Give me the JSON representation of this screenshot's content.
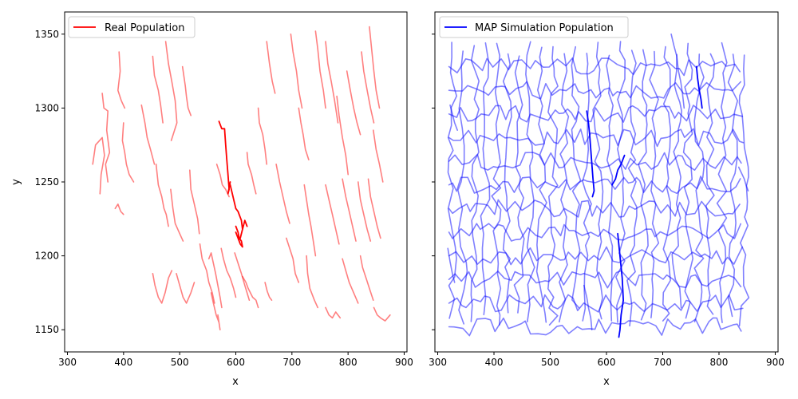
{
  "chart_data": [
    {
      "type": "line",
      "xlabel": "x",
      "ylabel": "y",
      "xlim": [
        295,
        905
      ],
      "ylim": [
        1135,
        1365
      ],
      "x_ticks": [
        300,
        400,
        500,
        600,
        700,
        800,
        900
      ],
      "y_ticks": [
        1150,
        1200,
        1250,
        1300,
        1350
      ],
      "legend": {
        "placement": "top-left",
        "label": "Real Population",
        "color": "#ff0000"
      },
      "series_color": "#ff0000",
      "series_opacity": 0.5,
      "highlight_opacity": 1.0,
      "series": [
        {
          "x": [
            362,
            365,
            372,
            370,
            375,
            368,
            372
          ],
          "y": [
            1310,
            1300,
            1298,
            1285,
            1270,
            1262,
            1250
          ]
        },
        {
          "x": [
            392,
            394,
            390,
            396,
            402
          ],
          "y": [
            1338,
            1325,
            1312,
            1305,
            1300
          ]
        },
        {
          "x": [
            345,
            350,
            362,
            366,
            360,
            358
          ],
          "y": [
            1262,
            1275,
            1280,
            1268,
            1255,
            1242
          ]
        },
        {
          "x": [
            400,
            398,
            402,
            405,
            410,
            418
          ],
          "y": [
            1290,
            1278,
            1270,
            1262,
            1255,
            1250
          ]
        },
        {
          "x": [
            385,
            390,
            395,
            400
          ],
          "y": [
            1232,
            1235,
            1230,
            1228
          ]
        },
        {
          "x": [
            432,
            438,
            442,
            448,
            455
          ],
          "y": [
            1302,
            1290,
            1280,
            1272,
            1262
          ]
        },
        {
          "x": [
            452,
            455,
            462,
            466,
            470
          ],
          "y": [
            1335,
            1322,
            1312,
            1302,
            1290
          ]
        },
        {
          "x": [
            475,
            480,
            486,
            492,
            495,
            485
          ],
          "y": [
            1345,
            1330,
            1318,
            1305,
            1290,
            1278
          ]
        },
        {
          "x": [
            505,
            510,
            512,
            515,
            520
          ],
          "y": [
            1328,
            1315,
            1308,
            1300,
            1295
          ]
        },
        {
          "x": [
            458,
            462,
            468,
            472,
            476,
            480
          ],
          "y": [
            1262,
            1248,
            1240,
            1232,
            1228,
            1220
          ]
        },
        {
          "x": [
            484,
            488,
            492,
            500,
            506
          ],
          "y": [
            1245,
            1232,
            1222,
            1215,
            1210
          ]
        },
        {
          "x": [
            518,
            520,
            526,
            532,
            535
          ],
          "y": [
            1258,
            1245,
            1235,
            1225,
            1215
          ]
        },
        {
          "x": [
            452,
            456,
            462,
            468,
            474,
            480,
            486
          ],
          "y": [
            1188,
            1180,
            1172,
            1168,
            1175,
            1185,
            1190
          ]
        },
        {
          "x": [
            494,
            500,
            506,
            512,
            520,
            526
          ],
          "y": [
            1188,
            1180,
            1172,
            1168,
            1175,
            1182
          ]
        },
        {
          "x": [
            536,
            540,
            548,
            552,
            558,
            562
          ],
          "y": [
            1208,
            1198,
            1190,
            1182,
            1175,
            1168
          ]
        },
        {
          "x": [
            552,
            556,
            560,
            564,
            568,
            572,
            575
          ],
          "y": [
            1198,
            1202,
            1195,
            1188,
            1180,
            1172,
            1165
          ]
        },
        {
          "x": [
            556,
            560,
            565,
            570,
            572,
            568
          ],
          "y": [
            1175,
            1168,
            1160,
            1155,
            1150,
            1160
          ]
        },
        {
          "x": [
            574,
            578,
            584,
            590,
            596,
            600
          ],
          "y": [
            1205,
            1198,
            1190,
            1185,
            1178,
            1172
          ]
        },
        {
          "x": [
            598,
            604,
            610,
            616,
            620,
            624
          ],
          "y": [
            1202,
            1195,
            1188,
            1180,
            1175,
            1170
          ]
        },
        {
          "x": [
            612,
            618,
            622,
            630,
            636,
            640
          ],
          "y": [
            1186,
            1182,
            1178,
            1172,
            1170,
            1165
          ]
        },
        {
          "x": [
            566,
            572,
            576,
            582,
            588
          ],
          "y": [
            1262,
            1255,
            1248,
            1245,
            1240
          ]
        },
        {
          "x": [
            620,
            622,
            628,
            632,
            636
          ],
          "y": [
            1270,
            1262,
            1255,
            1248,
            1242
          ]
        },
        {
          "x": [
            640,
            642,
            648,
            652,
            655
          ],
          "y": [
            1300,
            1290,
            1282,
            1272,
            1262
          ]
        },
        {
          "x": [
            655,
            660,
            665,
            670
          ],
          "y": [
            1345,
            1330,
            1318,
            1310
          ]
        },
        {
          "x": [
            672,
            678,
            684,
            690,
            696
          ],
          "y": [
            1262,
            1250,
            1240,
            1230,
            1222
          ]
        },
        {
          "x": [
            698,
            702,
            708,
            712,
            718
          ],
          "y": [
            1350,
            1338,
            1325,
            1312,
            1300
          ]
        },
        {
          "x": [
            712,
            716,
            720,
            724,
            730
          ],
          "y": [
            1300,
            1290,
            1282,
            1272,
            1265
          ]
        },
        {
          "x": [
            722,
            726,
            730,
            734,
            738,
            742
          ],
          "y": [
            1248,
            1238,
            1228,
            1220,
            1210,
            1200
          ]
        },
        {
          "x": [
            726,
            728,
            732,
            740,
            746
          ],
          "y": [
            1200,
            1188,
            1178,
            1170,
            1165
          ]
        },
        {
          "x": [
            742,
            746,
            750,
            756,
            760
          ],
          "y": [
            1352,
            1340,
            1325,
            1312,
            1300
          ]
        },
        {
          "x": [
            760,
            764,
            770,
            776,
            782
          ],
          "y": [
            1345,
            1330,
            1318,
            1305,
            1290
          ]
        },
        {
          "x": [
            780,
            784,
            790,
            796,
            800
          ],
          "y": [
            1308,
            1295,
            1280,
            1268,
            1255
          ]
        },
        {
          "x": [
            798,
            804,
            810,
            816,
            822
          ],
          "y": [
            1325,
            1312,
            1300,
            1290,
            1282
          ]
        },
        {
          "x": [
            824,
            828,
            834,
            840,
            846
          ],
          "y": [
            1338,
            1325,
            1312,
            1300,
            1290
          ]
        },
        {
          "x": [
            838,
            842,
            846,
            850,
            856
          ],
          "y": [
            1355,
            1340,
            1325,
            1312,
            1300
          ]
        },
        {
          "x": [
            845,
            850,
            856,
            862
          ],
          "y": [
            1285,
            1272,
            1262,
            1250
          ]
        },
        {
          "x": [
            760,
            766,
            772,
            778,
            784
          ],
          "y": [
            1248,
            1238,
            1228,
            1218,
            1208
          ]
        },
        {
          "x": [
            790,
            796,
            802,
            808,
            814
          ],
          "y": [
            1252,
            1240,
            1230,
            1220,
            1210
          ]
        },
        {
          "x": [
            818,
            822,
            828,
            834,
            840
          ],
          "y": [
            1250,
            1238,
            1228,
            1218,
            1210
          ]
        },
        {
          "x": [
            836,
            840,
            846,
            852,
            858
          ],
          "y": [
            1252,
            1240,
            1230,
            1220,
            1212
          ]
        },
        {
          "x": [
            790,
            796,
            802,
            810,
            818
          ],
          "y": [
            1198,
            1190,
            1182,
            1175,
            1168
          ]
        },
        {
          "x": [
            822,
            826,
            832,
            838,
            845
          ],
          "y": [
            1200,
            1192,
            1185,
            1178,
            1170
          ]
        },
        {
          "x": [
            846,
            852,
            858,
            866,
            875
          ],
          "y": [
            1165,
            1160,
            1158,
            1156,
            1160
          ]
        },
        {
          "x": [
            760,
            766,
            772,
            778,
            786
          ],
          "y": [
            1165,
            1160,
            1158,
            1162,
            1158
          ]
        },
        {
          "x": [
            690,
            696,
            702,
            706,
            712
          ],
          "y": [
            1212,
            1205,
            1198,
            1188,
            1182
          ]
        },
        {
          "x": [
            652,
            656,
            660,
            664
          ],
          "y": [
            1182,
            1176,
            1172,
            1170
          ]
        }
      ],
      "highlight_series": [
        {
          "x": [
            570,
            575,
            580,
            582,
            584,
            586,
            588,
            586,
            590
          ],
          "y": [
            1291,
            1286,
            1286,
            1275,
            1265,
            1255,
            1245,
            1242,
            1250
          ]
        },
        {
          "x": [
            590,
            595,
            600,
            604,
            610,
            612,
            608,
            616,
            620
          ],
          "y": [
            1248,
            1240,
            1232,
            1230,
            1224,
            1218,
            1212,
            1224,
            1220
          ]
        },
        {
          "x": [
            600,
            604,
            606,
            610,
            612,
            608,
            604,
            600
          ],
          "y": [
            1220,
            1216,
            1212,
            1210,
            1206,
            1208,
            1212,
            1216
          ]
        }
      ]
    },
    {
      "type": "line",
      "xlabel": "x",
      "ylabel": "",
      "xlim": [
        295,
        905
      ],
      "ylim": [
        1135,
        1365
      ],
      "x_ticks": [
        300,
        400,
        500,
        600,
        700,
        800,
        900
      ],
      "y_ticks": [
        1150,
        1200,
        1250,
        1300,
        1350
      ],
      "legend": {
        "placement": "top-left",
        "label": "MAP Simulation Population",
        "color": "#0000ff"
      },
      "series_color": "#0000ff",
      "series_opacity": 0.5,
      "highlight_opacity": 1.0,
      "grid_x_start": 325,
      "grid_x_end": 845,
      "grid_x_step": 20,
      "grid_y_start": 1152,
      "grid_y_end": 1340,
      "grid_y_step": 16,
      "extra_series": [
        {
          "x": [
            835,
            840,
            845,
            848,
            852
          ],
          "y": [
            1260,
            1256,
            1252,
            1248,
            1244
          ]
        },
        {
          "x": [
            322,
            326,
            330,
            335
          ],
          "y": [
            1302,
            1296,
            1290,
            1285
          ]
        },
        {
          "x": [
            318,
            322,
            326,
            330
          ],
          "y": [
            1205,
            1196,
            1188,
            1182
          ]
        },
        {
          "x": [
            715,
            720,
            725,
            728,
            732,
            735,
            738
          ],
          "y": [
            1350,
            1342,
            1335,
            1325,
            1318,
            1310,
            1300
          ]
        },
        {
          "x": [
            560,
            565,
            568,
            572,
            574
          ],
          "y": [
            1180,
            1172,
            1165,
            1158,
            1150
          ]
        }
      ],
      "highlight_series": [
        {
          "x": [
            565,
            568,
            570,
            572,
            574,
            576,
            578,
            575
          ],
          "y": [
            1298,
            1290,
            1282,
            1272,
            1262,
            1252,
            1244,
            1240
          ]
        },
        {
          "x": [
            620,
            624,
            628,
            630,
            626,
            624,
            622
          ],
          "y": [
            1215,
            1200,
            1185,
            1170,
            1160,
            1150,
            1145
          ]
        },
        {
          "x": [
            610,
            616,
            620,
            626,
            630,
            632
          ],
          "y": [
            1248,
            1252,
            1258,
            1262,
            1266,
            1268
          ]
        },
        {
          "x": [
            760,
            762,
            765,
            768,
            770
          ],
          "y": [
            1328,
            1320,
            1312,
            1306,
            1300
          ]
        }
      ]
    }
  ]
}
